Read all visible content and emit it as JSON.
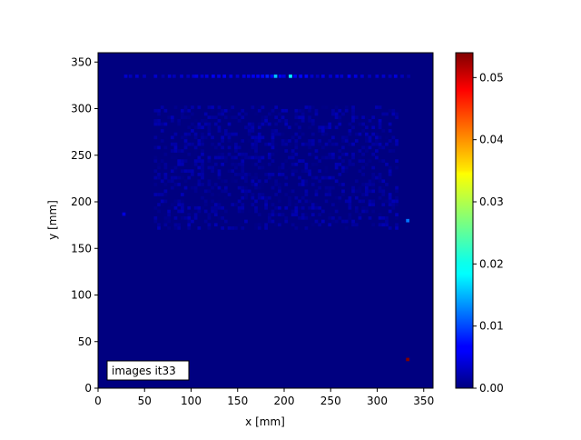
{
  "chart_data": {
    "type": "heatmap",
    "xlabel": "x [mm]",
    "ylabel": "y [mm]",
    "xlim": [
      0,
      360
    ],
    "ylim": [
      0,
      360
    ],
    "xticks": [
      0,
      50,
      100,
      150,
      200,
      250,
      300,
      350
    ],
    "yticks": [
      0,
      50,
      100,
      150,
      200,
      250,
      300,
      350
    ],
    "colormap": "jet",
    "background_value": 0.0,
    "bin_size_mm": 3.6,
    "colorbar": {
      "range": [
        0,
        0.054
      ],
      "ticks": [
        0.0,
        0.01,
        0.02,
        0.03,
        0.04,
        0.05
      ],
      "tick_labels": [
        "0.00",
        "0.01",
        "0.02",
        "0.03",
        "0.04",
        "0.05"
      ]
    },
    "annotation": "images it33",
    "hot_cells": [
      {
        "x": 331,
        "y": 29,
        "value": 0.054
      },
      {
        "x": 331,
        "y": 178,
        "value": 0.013
      },
      {
        "x": 26,
        "y": 185,
        "value": 0.005
      },
      {
        "x": 189,
        "y": 333,
        "value": 0.017
      },
      {
        "x": 205,
        "y": 333,
        "value": 0.02
      }
    ],
    "top_row": {
      "y": 333,
      "x": [
        28,
        33,
        40,
        48,
        60,
        68,
        75,
        80,
        88,
        95,
        101,
        104,
        110,
        115,
        122,
        128,
        134,
        141,
        148,
        155,
        160,
        165,
        170,
        175,
        180,
        185,
        194,
        198,
        210,
        216,
        222,
        228,
        234,
        240,
        248,
        255,
        260,
        268,
        275,
        282,
        290,
        298,
        305,
        312,
        318,
        325,
        332
      ],
      "values": [
        0.004,
        0.003,
        0.004,
        0.003,
        0.004,
        0.002,
        0.004,
        0.003,
        0.004,
        0.003,
        0.004,
        0.005,
        0.004,
        0.005,
        0.006,
        0.005,
        0.006,
        0.005,
        0.004,
        0.005,
        0.005,
        0.006,
        0.006,
        0.007,
        0.008,
        0.006,
        0.006,
        0.005,
        0.006,
        0.007,
        0.007,
        0.004,
        0.003,
        0.005,
        0.004,
        0.005,
        0.004,
        0.006,
        0.005,
        0.004,
        0.003,
        0.004,
        0.004,
        0.003,
        0.005,
        0.003,
        0.002
      ]
    },
    "faint_region": {
      "x_range": [
        60,
        320
      ],
      "y_range": [
        170,
        300
      ],
      "value_max": 0.003
    }
  }
}
